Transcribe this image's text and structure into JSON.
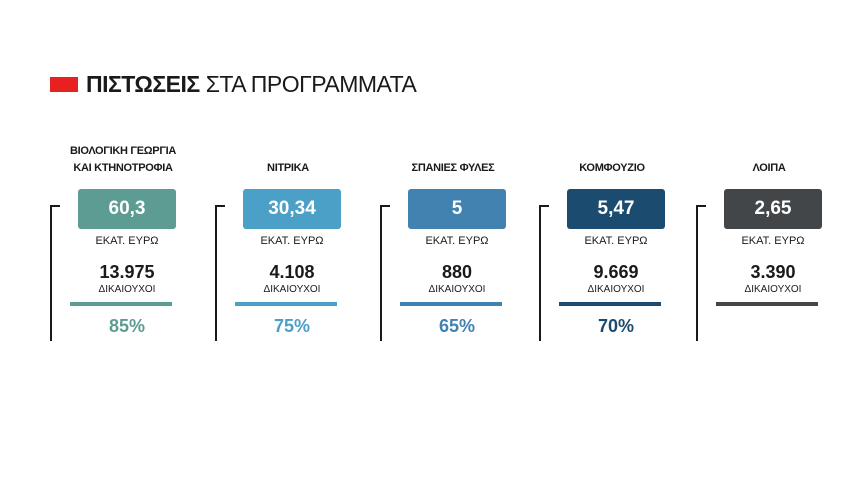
{
  "header": {
    "title_bold": "ΠΙΣΤΩΣΕΙΣ",
    "title_rest": "ΣΤΑ ΠΡΟΓΡΑΜΜΑΤΑ",
    "accent_color": "#e8201f"
  },
  "programs": [
    {
      "title_line1": "ΒΙΟΛΟΓΙΚΗ ΓΕΩΡΓΙΑ",
      "title_line2": "ΚΑΙ ΚΤΗΝΟΤΡΟΦΙΑ",
      "value": "60,3",
      "unit": "ΕΚΑΤ. ΕΥΡΩ",
      "beneficiaries": "13.975",
      "beneficiaries_label": "ΔΙΚΑΙΟΥΧΟΙ",
      "percentage": "85%",
      "color": "#5d9c92"
    },
    {
      "title_line1": "ΝΙΤΡΙΚΑ",
      "value": "30,34",
      "unit": "ΕΚΑΤ. ΕΥΡΩ",
      "beneficiaries": "4.108",
      "beneficiaries_label": "ΔΙΚΑΙΟΥΧΟΙ",
      "percentage": "75%",
      "color": "#4aa0c6"
    },
    {
      "title_line1": "ΣΠΑΝΙΕΣ ΦΥΛΕΣ",
      "value": "5",
      "unit": "ΕΚΑΤ. ΕΥΡΩ",
      "beneficiaries": "880",
      "beneficiaries_label": "ΔΙΚΑΙΟΥΧΟΙ",
      "percentage": "65%",
      "color": "#4182b1"
    },
    {
      "title_line1": "ΚΟΜΦΟΥΖΙΟ",
      "value": "5,47",
      "unit": "ΕΚΑΤ. ΕΥΡΩ",
      "beneficiaries": "9.669",
      "beneficiaries_label": "ΔΙΚΑΙΟΥΧΟΙ",
      "percentage": "70%",
      "color": "#1c4b70"
    },
    {
      "title_line1": "ΛΟΙΠΑ",
      "value": "2,65",
      "unit": "ΕΚΑΤ. ΕΥΡΩ",
      "beneficiaries": "3.390",
      "beneficiaries_label": "ΔΙΚΑΙΟΥΧΟΙ",
      "percentage": "",
      "color": "#424649"
    }
  ]
}
